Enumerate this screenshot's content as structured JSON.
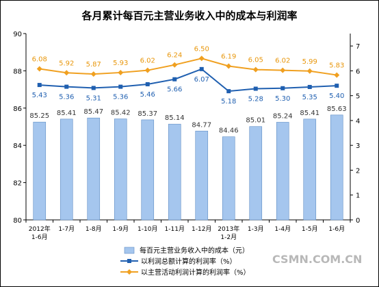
{
  "chart_data": {
    "type": "bar",
    "title": "各月累计每百元主营业务收入中的成本与利润率",
    "categories": [
      [
        "2012年",
        "1-6月"
      ],
      [
        "1-7月"
      ],
      [
        "1-8月"
      ],
      [
        "1-9月"
      ],
      [
        "1-10月"
      ],
      [
        "1-11月"
      ],
      [
        "1-12月"
      ],
      [
        "2013年",
        "1-2月"
      ],
      [
        "1-3月"
      ],
      [
        "1-4月"
      ],
      [
        "1-5月"
      ],
      [
        "1-6月"
      ]
    ],
    "y_left": {
      "min": 80,
      "max": 90,
      "ticks": [
        80,
        82,
        84,
        86,
        88,
        90
      ]
    },
    "y_right": {
      "min": 0,
      "max": 7.5,
      "ticks": [
        0,
        1,
        2,
        3,
        4,
        5,
        6,
        7
      ]
    },
    "series": [
      {
        "name": "每百元主营业务收入中的成本（元）",
        "axis": "left",
        "kind": "bar",
        "values": [
          85.25,
          85.41,
          85.47,
          85.42,
          85.37,
          85.14,
          84.77,
          84.46,
          85.01,
          85.24,
          85.41,
          85.63
        ],
        "labels": [
          "85.25",
          "85.41",
          "85.47",
          "85.42",
          "85.37",
          "85.14",
          "84.77",
          "84.46",
          "85.01",
          "85.24",
          "85.41",
          "85.63"
        ]
      },
      {
        "name": "以利润总额计算的利润率（%）",
        "axis": "right",
        "kind": "line",
        "marker": "square",
        "values": [
          5.43,
          5.36,
          5.31,
          5.36,
          5.46,
          5.66,
          6.07,
          5.18,
          5.28,
          5.3,
          5.35,
          5.4
        ],
        "labels": [
          "5.43",
          "5.36",
          "5.31",
          "5.36",
          "5.46",
          "5.66",
          "6.07",
          "5.18",
          "5.28",
          "5.30",
          "5.35",
          "5.40"
        ]
      },
      {
        "name": "以主营活动利润计算的利润率（%）",
        "axis": "right",
        "kind": "line",
        "marker": "diamond",
        "values": [
          6.08,
          5.92,
          5.87,
          5.93,
          6.02,
          6.24,
          6.5,
          6.19,
          6.05,
          6.02,
          5.99,
          5.83
        ],
        "labels": [
          "6.08",
          "5.92",
          "5.87",
          "5.93",
          "6.02",
          "6.24",
          "6.50",
          "6.19",
          "6.05",
          "6.02",
          "5.99",
          "5.83"
        ]
      }
    ],
    "legend_position": "bottom",
    "colors": {
      "bar": "#a5c6ee",
      "bar_stroke": "#5f8dc4",
      "profit_total": "#1f5fb0",
      "main_activity": "#f0a020"
    }
  },
  "watermark": "CSMN.COM.CN"
}
